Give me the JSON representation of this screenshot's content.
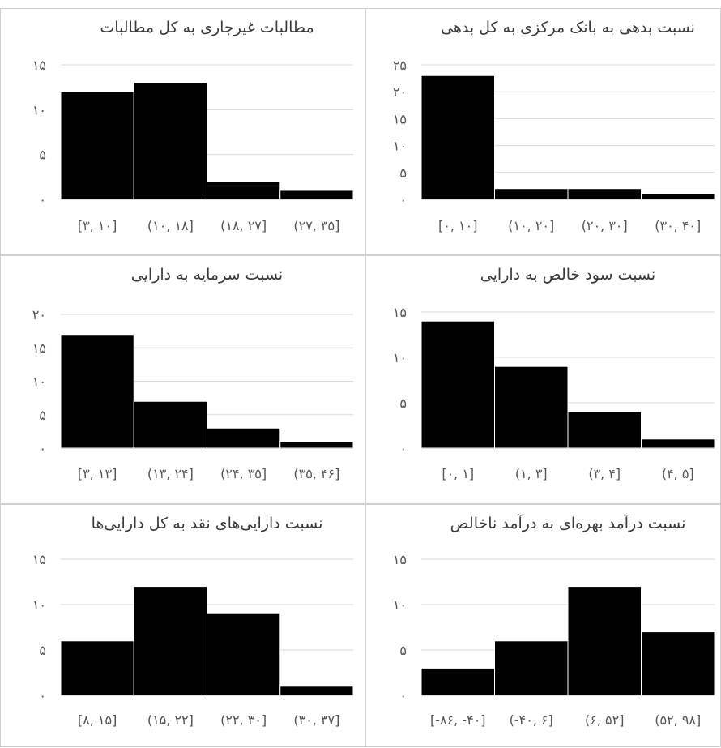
{
  "chart_data": [
    {
      "type": "bar",
      "title": "مطالبات غیرجاری به کل مطالبات",
      "categories": [
        "[۳, ۱۰]",
        "(۱۰, ۱۸]",
        "(۱۸, ۲۷]",
        "(۲۷, ۳۵]"
      ],
      "values": [
        12,
        13,
        2,
        1
      ],
      "yticks": [
        "۰",
        "۵",
        "۱۰",
        "۱۵"
      ],
      "ylim": [
        0,
        15
      ],
      "grid": true
    },
    {
      "type": "bar",
      "title": "نسبت بدهی به بانک مرکزی به کل بدهی",
      "categories": [
        "[۰, ۱۰]",
        "(۱۰, ۲۰]",
        "(۲۰, ۳۰]",
        "(۳۰, ۴۰]"
      ],
      "values": [
        23,
        2,
        2,
        1
      ],
      "yticks": [
        "۰",
        "۵",
        "۱۰",
        "۱۵",
        "۲۰",
        "۲۵"
      ],
      "ylim": [
        0,
        25
      ],
      "grid": true
    },
    {
      "type": "bar",
      "title": "نسبت سرمایه به دارایی",
      "categories": [
        "[۳, ۱۳]",
        "(۱۳, ۲۴]",
        "(۲۴, ۳۵]",
        "(۳۵, ۴۶]"
      ],
      "values": [
        17,
        7,
        3,
        1
      ],
      "yticks": [
        "۰",
        "۵",
        "۱۰",
        "۱۵",
        "۲۰"
      ],
      "ylim": [
        0,
        20
      ],
      "grid": true
    },
    {
      "type": "bar",
      "title": "نسبت سود خالص به دارایی",
      "categories": [
        "[۰, ۱]",
        "(۱, ۳]",
        "(۳, ۴]",
        "(۴, ۵]"
      ],
      "values": [
        14,
        9,
        4,
        1
      ],
      "yticks": [
        "۰",
        "۵",
        "۱۰",
        "۱۵"
      ],
      "ylim": [
        0,
        15
      ],
      "grid": true
    },
    {
      "type": "bar",
      "title": "نسبت دارایی‌های نقد به کل دارایی‌ها",
      "categories": [
        "[۸, ۱۵]",
        "(۱۵, ۲۲]",
        "(۲۲, ۳۰]",
        "(۳۰, ۳۷]"
      ],
      "values": [
        6,
        12,
        9,
        1
      ],
      "yticks": [
        "۰",
        "۵",
        "۱۰",
        "۱۵"
      ],
      "ylim": [
        0,
        15
      ],
      "grid": true
    },
    {
      "type": "bar",
      "title": "نسبت درآمد بهره‌ای به درآمد ناخالص",
      "categories": [
        "[-۸۶, -۴۰]",
        "(-۴۰, ۶]",
        "(۶, ۵۲]",
        "(۵۲, ۹۸]"
      ],
      "values": [
        3,
        6,
        12,
        7
      ],
      "yticks": [
        "۰",
        "۵",
        "۱۰",
        "۱۵"
      ],
      "ylim": [
        0,
        15
      ],
      "grid": true
    }
  ]
}
